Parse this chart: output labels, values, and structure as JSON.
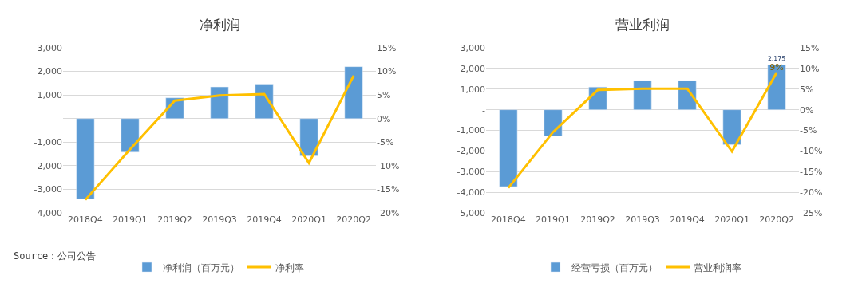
{
  "chart_data": [
    {
      "type": "bar",
      "title": "净利润",
      "categories": [
        "2018Q4",
        "2019Q1",
        "2019Q2",
        "2019Q3",
        "2019Q4",
        "2020Q1",
        "2020Q2"
      ],
      "series": [
        {
          "name": "净利润（百万元）",
          "color": "#5b9bd5",
          "values": [
            -3400,
            -1420,
            880,
            1340,
            1460,
            -1580,
            2200
          ]
        },
        {
          "name": "净利率",
          "type": "line",
          "axis": "y2",
          "color": "#ffc000",
          "values": [
            -17.2,
            -6.5,
            3.8,
            4.9,
            5.2,
            -9.4,
            9.1
          ]
        }
      ],
      "ylim": [
        -4000,
        3000
      ],
      "yticks": [
        {
          "value": -4000,
          "label": "-4,000"
        },
        {
          "value": -3000,
          "label": "-3,000"
        },
        {
          "value": -2000,
          "label": "-2,000"
        },
        {
          "value": -1000,
          "label": "-1,000"
        },
        {
          "value": 0,
          "label": "-"
        },
        {
          "value": 1000,
          "label": "1,000"
        },
        {
          "value": 2000,
          "label": "2,000"
        },
        {
          "value": 3000,
          "label": "3,000"
        }
      ],
      "y2lim": [
        -20,
        15
      ],
      "y2ticks": [
        {
          "value": -20,
          "label": "-20%"
        },
        {
          "value": -15,
          "label": "-15%"
        },
        {
          "value": -10,
          "label": "-10%"
        },
        {
          "value": -5,
          "label": "-5%"
        },
        {
          "value": 0,
          "label": "0%"
        },
        {
          "value": 5,
          "label": "5%"
        },
        {
          "value": 10,
          "label": "10%"
        },
        {
          "value": 15,
          "label": "15%"
        }
      ],
      "grid": "y",
      "legend": "bottom",
      "marker": "none",
      "annotations": [
        "Source：公司公告"
      ]
    },
    {
      "type": "bar",
      "title": "营业利润",
      "categories": [
        "2018Q4",
        "2019Q1",
        "2019Q2",
        "2019Q3",
        "2019Q4",
        "2020Q1",
        "2020Q2"
      ],
      "series": [
        {
          "name": "经营亏损（百万元）",
          "color": "#5b9bd5",
          "values": [
            -3720,
            -1270,
            1100,
            1410,
            1410,
            -1690,
            2175
          ],
          "value_labels": [
            null,
            null,
            null,
            null,
            null,
            null,
            "2,175"
          ]
        },
        {
          "name": "营业利润率",
          "type": "line",
          "axis": "y2",
          "color": "#ffc000",
          "values": [
            -18.9,
            -5.4,
            4.8,
            5.1,
            5.1,
            -10.1,
            9
          ],
          "value_labels": [
            null,
            null,
            null,
            null,
            null,
            null,
            "9%"
          ]
        }
      ],
      "ylim": [
        -5000,
        3000
      ],
      "yticks": [
        {
          "value": -5000,
          "label": "-5,000"
        },
        {
          "value": -4000,
          "label": "-4,000"
        },
        {
          "value": -3000,
          "label": "-3,000"
        },
        {
          "value": -2000,
          "label": "-2,000"
        },
        {
          "value": -1000,
          "label": "-1,000"
        },
        {
          "value": 0,
          "label": "-"
        },
        {
          "value": 1000,
          "label": "1,000"
        },
        {
          "value": 2000,
          "label": "2,000"
        },
        {
          "value": 3000,
          "label": "3,000"
        }
      ],
      "y2lim": [
        -25,
        15
      ],
      "y2ticks": [
        {
          "value": -25,
          "label": "-25%"
        },
        {
          "value": -20,
          "label": "-20%"
        },
        {
          "value": -15,
          "label": "-15%"
        },
        {
          "value": -10,
          "label": "-10%"
        },
        {
          "value": -5,
          "label": "-5%"
        },
        {
          "value": 0,
          "label": "0%"
        },
        {
          "value": 5,
          "label": "5%"
        },
        {
          "value": 10,
          "label": "10%"
        },
        {
          "value": 15,
          "label": "15%"
        }
      ],
      "grid": "y",
      "legend": "bottom",
      "marker": "none"
    }
  ]
}
